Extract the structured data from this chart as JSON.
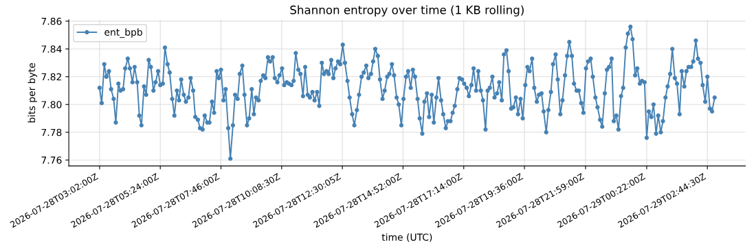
{
  "chart_data": {
    "type": "line",
    "title": "Shannon entropy over time (1 KB rolling)",
    "xlabel": "time (UTC)",
    "ylabel": "bits per byte",
    "x": [
      "2026-07-28T03:02",
      "2026-07-28T03:07",
      "2026-07-28T03:13",
      "2026-07-28T03:18",
      "2026-07-28T03:24",
      "2026-07-28T03:29",
      "2026-07-28T03:35",
      "2026-07-28T03:40",
      "2026-07-28T03:46",
      "2026-07-28T03:51",
      "2026-07-28T03:57",
      "2026-07-28T04:02",
      "2026-07-28T04:08",
      "2026-07-28T04:13",
      "2026-07-28T04:19",
      "2026-07-28T04:24",
      "2026-07-28T04:30",
      "2026-07-28T04:35",
      "2026-07-28T04:40",
      "2026-07-28T04:46",
      "2026-07-28T04:51",
      "2026-07-28T04:57",
      "2026-07-28T05:02",
      "2026-07-28T05:08",
      "2026-07-28T05:13",
      "2026-07-28T05:19",
      "2026-07-28T05:24",
      "2026-07-28T05:30",
      "2026-07-28T05:35",
      "2026-07-28T05:41",
      "2026-07-28T05:46",
      "2026-07-28T05:52",
      "2026-07-28T05:57",
      "2026-07-28T06:03",
      "2026-07-28T06:08",
      "2026-07-28T06:13",
      "2026-07-28T06:19",
      "2026-07-28T06:24",
      "2026-07-28T06:30",
      "2026-07-28T06:35",
      "2026-07-28T06:41",
      "2026-07-28T06:46",
      "2026-07-28T06:52",
      "2026-07-28T06:57",
      "2026-07-28T07:03",
      "2026-07-28T07:08",
      "2026-07-28T07:14",
      "2026-07-28T07:19",
      "2026-07-28T07:25",
      "2026-07-28T07:30",
      "2026-07-28T07:36",
      "2026-07-28T07:41",
      "2026-07-28T07:46",
      "2026-07-28T07:52",
      "2026-07-28T07:57",
      "2026-07-28T08:03",
      "2026-07-28T08:08",
      "2026-07-28T08:14",
      "2026-07-28T08:19",
      "2026-07-28T08:25",
      "2026-07-28T08:30",
      "2026-07-28T08:36",
      "2026-07-28T08:41",
      "2026-07-28T08:47",
      "2026-07-28T08:52",
      "2026-07-28T08:58",
      "2026-07-28T09:03",
      "2026-07-28T09:08",
      "2026-07-28T09:14",
      "2026-07-28T09:19",
      "2026-07-28T09:25",
      "2026-07-28T09:30",
      "2026-07-28T09:36",
      "2026-07-28T09:41",
      "2026-07-28T09:47",
      "2026-07-28T09:52",
      "2026-07-28T09:58",
      "2026-07-28T10:03",
      "2026-07-28T10:09",
      "2026-07-28T10:14",
      "2026-07-28T10:20",
      "2026-07-28T10:25",
      "2026-07-28T10:31",
      "2026-07-28T10:36",
      "2026-07-28T10:41",
      "2026-07-28T10:47",
      "2026-07-28T10:52",
      "2026-07-28T10:58",
      "2026-07-28T11:03",
      "2026-07-28T11:09",
      "2026-07-28T11:14",
      "2026-07-28T11:20",
      "2026-07-28T11:25",
      "2026-07-28T11:31",
      "2026-07-28T11:36",
      "2026-07-28T11:42",
      "2026-07-28T11:47",
      "2026-07-28T11:53",
      "2026-07-28T11:58",
      "2026-07-28T12:04",
      "2026-07-28T12:09",
      "2026-07-28T12:14",
      "2026-07-28T12:20",
      "2026-07-28T12:25",
      "2026-07-28T12:31",
      "2026-07-28T12:36",
      "2026-07-28T12:42",
      "2026-07-28T12:47",
      "2026-07-28T12:53",
      "2026-07-28T12:58",
      "2026-07-28T13:04",
      "2026-07-28T13:09",
      "2026-07-28T13:15",
      "2026-07-28T13:20",
      "2026-07-28T13:26",
      "2026-07-28T13:31",
      "2026-07-28T13:37",
      "2026-07-28T13:42",
      "2026-07-28T13:47",
      "2026-07-28T13:53",
      "2026-07-28T13:58",
      "2026-07-28T14:04",
      "2026-07-28T14:09",
      "2026-07-28T14:15",
      "2026-07-28T14:20",
      "2026-07-28T14:26",
      "2026-07-28T14:31",
      "2026-07-28T14:37",
      "2026-07-28T14:42",
      "2026-07-28T14:48",
      "2026-07-28T14:53",
      "2026-07-28T14:59",
      "2026-07-28T15:04",
      "2026-07-28T15:10",
      "2026-07-28T15:15",
      "2026-07-28T15:20",
      "2026-07-28T15:26",
      "2026-07-28T15:31",
      "2026-07-28T15:37",
      "2026-07-28T15:42",
      "2026-07-28T15:48",
      "2026-07-28T15:53",
      "2026-07-28T15:59",
      "2026-07-28T16:04",
      "2026-07-28T16:10",
      "2026-07-28T16:15",
      "2026-07-28T16:21",
      "2026-07-28T16:26",
      "2026-07-28T16:32",
      "2026-07-28T16:37",
      "2026-07-28T16:43",
      "2026-07-28T16:48",
      "2026-07-28T16:53",
      "2026-07-28T16:59",
      "2026-07-28T17:04",
      "2026-07-28T17:10",
      "2026-07-28T17:15",
      "2026-07-28T17:21",
      "2026-07-28T17:26",
      "2026-07-28T17:32",
      "2026-07-28T17:37",
      "2026-07-28T17:43",
      "2026-07-28T17:48",
      "2026-07-28T17:54",
      "2026-07-28T17:59",
      "2026-07-28T18:05",
      "2026-07-28T18:10",
      "2026-07-28T18:15",
      "2026-07-28T18:21",
      "2026-07-28T18:26",
      "2026-07-28T18:32",
      "2026-07-28T18:37",
      "2026-07-28T18:43",
      "2026-07-28T18:48",
      "2026-07-28T18:54",
      "2026-07-28T18:59",
      "2026-07-28T19:05",
      "2026-07-28T19:10",
      "2026-07-28T19:16",
      "2026-07-28T19:21",
      "2026-07-28T19:27",
      "2026-07-28T19:32",
      "2026-07-28T19:38",
      "2026-07-28T19:43",
      "2026-07-28T19:48",
      "2026-07-28T19:54",
      "2026-07-28T19:59",
      "2026-07-28T20:05",
      "2026-07-28T20:10",
      "2026-07-28T20:16",
      "2026-07-28T20:21",
      "2026-07-28T20:27",
      "2026-07-28T20:32",
      "2026-07-28T20:38",
      "2026-07-28T20:43",
      "2026-07-28T20:49",
      "2026-07-28T20:54",
      "2026-07-28T21:00",
      "2026-07-28T21:05",
      "2026-07-28T21:11",
      "2026-07-28T21:16",
      "2026-07-28T21:21",
      "2026-07-28T21:27",
      "2026-07-28T21:32",
      "2026-07-28T21:38",
      "2026-07-28T21:43",
      "2026-07-28T21:49",
      "2026-07-28T21:54",
      "2026-07-28T22:00",
      "2026-07-28T22:05",
      "2026-07-28T22:11",
      "2026-07-28T22:16",
      "2026-07-28T22:22",
      "2026-07-28T22:27",
      "2026-07-28T22:33",
      "2026-07-28T22:38",
      "2026-07-28T22:44",
      "2026-07-28T22:49",
      "2026-07-28T22:54",
      "2026-07-28T23:00",
      "2026-07-28T23:05",
      "2026-07-28T23:11",
      "2026-07-28T23:16",
      "2026-07-28T23:22",
      "2026-07-28T23:27",
      "2026-07-28T23:33",
      "2026-07-28T23:38",
      "2026-07-28T23:44",
      "2026-07-28T23:49",
      "2026-07-28T23:55",
      "2026-07-29T00:00",
      "2026-07-29T00:06",
      "2026-07-29T00:11",
      "2026-07-29T00:17",
      "2026-07-29T00:22",
      "2026-07-29T00:27",
      "2026-07-29T00:33",
      "2026-07-29T00:38",
      "2026-07-29T00:44",
      "2026-07-29T00:49",
      "2026-07-29T00:55",
      "2026-07-29T01:00",
      "2026-07-29T01:06",
      "2026-07-29T01:11",
      "2026-07-29T01:17",
      "2026-07-29T01:22",
      "2026-07-29T01:28",
      "2026-07-29T01:33",
      "2026-07-29T01:39",
      "2026-07-29T01:44",
      "2026-07-29T01:50",
      "2026-07-29T01:55",
      "2026-07-29T02:00",
      "2026-07-29T02:06",
      "2026-07-29T02:11",
      "2026-07-29T02:17",
      "2026-07-29T02:22",
      "2026-07-29T02:28",
      "2026-07-29T02:33",
      "2026-07-29T02:39",
      "2026-07-29T02:44",
      "2026-07-29T02:50",
      "2026-07-29T02:55",
      "2026-07-29T03:01"
    ],
    "series": [
      {
        "name": "ent_bpb",
        "color": "#4682b4",
        "values": [
          7.812,
          7.801,
          7.829,
          7.82,
          7.824,
          7.811,
          7.804,
          7.787,
          7.815,
          7.81,
          7.811,
          7.826,
          7.833,
          7.826,
          7.816,
          7.827,
          7.816,
          7.792,
          7.785,
          7.813,
          7.807,
          7.832,
          7.827,
          7.81,
          7.816,
          7.824,
          7.814,
          7.815,
          7.841,
          7.829,
          7.823,
          7.804,
          7.792,
          7.81,
          7.803,
          7.818,
          7.807,
          7.802,
          7.805,
          7.819,
          7.81,
          7.791,
          7.789,
          7.783,
          7.782,
          7.792,
          7.787,
          7.787,
          7.802,
          7.794,
          7.824,
          7.819,
          7.825,
          7.803,
          7.811,
          7.783,
          7.761,
          7.785,
          7.807,
          7.804,
          7.822,
          7.828,
          7.807,
          7.785,
          7.79,
          7.811,
          7.793,
          7.805,
          7.803,
          7.817,
          7.821,
          7.819,
          7.834,
          7.831,
          7.834,
          7.819,
          7.816,
          7.821,
          7.826,
          7.814,
          7.816,
          7.815,
          7.814,
          7.817,
          7.837,
          7.825,
          7.822,
          7.806,
          7.827,
          7.807,
          7.805,
          7.809,
          7.803,
          7.809,
          7.799,
          7.83,
          7.822,
          7.824,
          7.822,
          7.832,
          7.819,
          7.826,
          7.831,
          7.829,
          7.843,
          7.83,
          7.817,
          7.805,
          7.793,
          7.785,
          7.796,
          7.807,
          7.82,
          7.823,
          7.828,
          7.819,
          7.822,
          7.831,
          7.84,
          7.835,
          7.818,
          7.804,
          7.81,
          7.82,
          7.822,
          7.829,
          7.821,
          7.805,
          7.8,
          7.785,
          7.804,
          7.82,
          7.824,
          7.812,
          7.825,
          7.82,
          7.804,
          7.79,
          7.779,
          7.802,
          7.808,
          7.791,
          7.807,
          7.787,
          7.805,
          7.819,
          7.803,
          7.793,
          7.783,
          7.788,
          7.788,
          7.794,
          7.799,
          7.811,
          7.819,
          7.818,
          7.815,
          7.812,
          7.806,
          7.814,
          7.826,
          7.81,
          7.824,
          7.81,
          7.803,
          7.782,
          7.81,
          7.812,
          7.82,
          7.805,
          7.808,
          7.816,
          7.803,
          7.836,
          7.839,
          7.824,
          7.797,
          7.798,
          7.805,
          7.793,
          7.804,
          7.79,
          7.814,
          7.827,
          7.824,
          7.833,
          7.812,
          7.802,
          7.807,
          7.808,
          7.795,
          7.78,
          7.796,
          7.809,
          7.829,
          7.836,
          7.818,
          7.793,
          7.803,
          7.821,
          7.835,
          7.845,
          7.835,
          7.815,
          7.81,
          7.81,
          7.801,
          7.794,
          7.826,
          7.831,
          7.833,
          7.82,
          7.805,
          7.798,
          7.789,
          7.784,
          7.808,
          7.825,
          7.827,
          7.833,
          7.788,
          7.792,
          7.782,
          7.806,
          7.812,
          7.841,
          7.851,
          7.856,
          7.847,
          7.821,
          7.826,
          7.815,
          7.817,
          7.816,
          7.776,
          7.795,
          7.791,
          7.8,
          7.779,
          7.792,
          7.78,
          7.788,
          7.805,
          7.813,
          7.822,
          7.84,
          7.819,
          7.815,
          7.793,
          7.824,
          7.813,
          7.824,
          7.827,
          7.827,
          7.831,
          7.846,
          7.833,
          7.83,
          7.814,
          7.802,
          7.82,
          7.797,
          7.795,
          7.805
        ]
      }
    ],
    "xlim": [
      "2026-07-28T01:50",
      "2026-07-29T04:13"
    ],
    "xticks": [
      {
        "value": "2026-07-28T03:02",
        "label": "2026-07-28T03:02:00Z"
      },
      {
        "value": "2026-07-28T05:24",
        "label": "2026-07-28T05:24:00Z"
      },
      {
        "value": "2026-07-28T07:46",
        "label": "2026-07-28T07:46:00Z"
      },
      {
        "value": "2026-07-28T10:08",
        "label": "2026-07-28T10:08:30Z"
      },
      {
        "value": "2026-07-28T12:30",
        "label": "2026-07-28T12:30:05Z"
      },
      {
        "value": "2026-07-28T14:52",
        "label": "2026-07-28T14:52:00Z"
      },
      {
        "value": "2026-07-28T17:14",
        "label": "2026-07-28T17:14:00Z"
      },
      {
        "value": "2026-07-28T19:36",
        "label": "2026-07-28T19:36:00Z"
      },
      {
        "value": "2026-07-28T21:59",
        "label": "2026-07-28T21:59:00Z"
      },
      {
        "value": "2026-07-29T00:22",
        "label": "2026-07-29T00:22:00Z"
      },
      {
        "value": "2026-07-29T02:44",
        "label": "2026-07-29T02:44:30Z"
      }
    ],
    "ylim": [
      7.7557,
      7.861
    ],
    "yticks": [
      7.76,
      7.78,
      {
        "value": 7.8,
        "label": "7.80"
      },
      7.82,
      7.84,
      7.86
    ],
    "grid": true,
    "legend": "top left",
    "marker": "circle",
    "line_style": "solid"
  }
}
